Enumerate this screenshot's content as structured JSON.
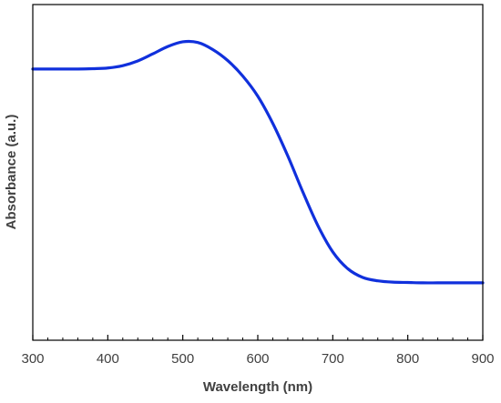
{
  "chart_data": {
    "type": "line",
    "title": "",
    "xlabel": "Wavelength (nm)",
    "ylabel": "Absorbance (a.u.)",
    "xlim": [
      300,
      900
    ],
    "ylim": [
      0,
      1
    ],
    "x_ticks": [
      300,
      400,
      500,
      600,
      700,
      800,
      900
    ],
    "x_tick_labels": [
      "300",
      "400",
      "500",
      "600",
      "700",
      "800",
      "900"
    ],
    "x_minor_step": 20,
    "y_ticks_shown": false,
    "grid": false,
    "legend": "none",
    "series_color": "#1030dc",
    "axis_color": "#000000",
    "series": [
      {
        "x": [
          300,
          320,
          340,
          360,
          380,
          400,
          420,
          440,
          460,
          480,
          500,
          520,
          540,
          560,
          580,
          600,
          620,
          640,
          660,
          680,
          700,
          720,
          740,
          760,
          780,
          800,
          820,
          840,
          860,
          880,
          900
        ],
        "y": [
          0.808,
          0.808,
          0.808,
          0.808,
          0.809,
          0.811,
          0.818,
          0.832,
          0.853,
          0.875,
          0.889,
          0.887,
          0.866,
          0.833,
          0.787,
          0.727,
          0.646,
          0.549,
          0.442,
          0.342,
          0.263,
          0.213,
          0.187,
          0.177,
          0.173,
          0.172,
          0.171,
          0.171,
          0.171,
          0.171,
          0.171
        ]
      }
    ]
  }
}
